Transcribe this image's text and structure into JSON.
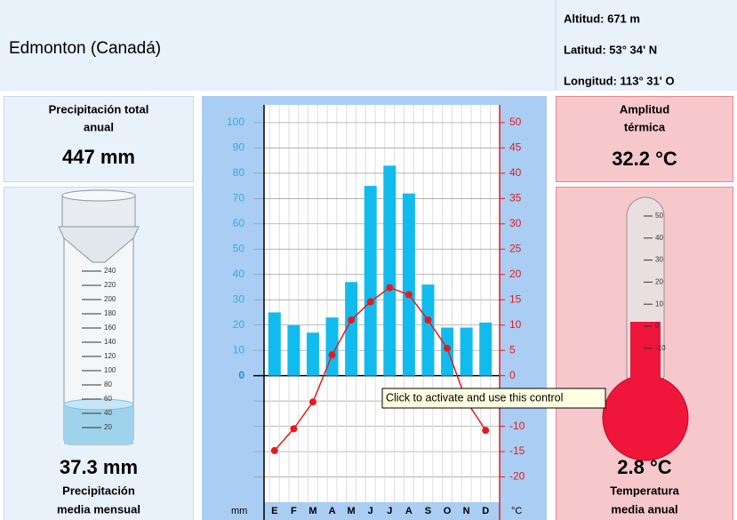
{
  "header": {
    "title": "Edmonton (Canadá)",
    "altitude": "Altitud: 671 m",
    "latitude": "Latitud: 53° 34' N",
    "longitude": "Longitud: 113° 31' O"
  },
  "precip_total": {
    "label": [
      "Precipitación total",
      "anual"
    ],
    "value": "447 mm"
  },
  "precip_mean": {
    "value": "37.3 mm",
    "label": [
      "Precipitación",
      "media mensual"
    ]
  },
  "amplitude": {
    "label": [
      "Amplitud",
      "térmica"
    ],
    "value": "32.2 °C"
  },
  "temp_mean": {
    "value": "2.8 °C",
    "label": [
      "Temperatura",
      "media anual"
    ]
  },
  "cylinder_ticks": [
    240,
    220,
    200,
    180,
    160,
    140,
    120,
    100,
    80,
    60,
    40,
    20
  ],
  "thermometer_ticks": [
    50,
    40,
    30,
    20,
    10,
    0,
    -10
  ],
  "tooltip": "Click to activate and use this control",
  "chart_data": {
    "type": "climograph",
    "categories": [
      "E",
      "F",
      "M",
      "A",
      "M",
      "J",
      "J",
      "A",
      "S",
      "O",
      "N",
      "D"
    ],
    "series": [
      {
        "name": "Precipitación",
        "color": "#11bbee",
        "values": [
          25,
          20,
          17,
          23,
          37,
          75,
          83,
          72,
          36,
          19,
          19,
          21
        ]
      },
      {
        "name": "Temperatura",
        "color": "#e8191e",
        "axis": "y2",
        "values": [
          -14.8,
          -10.5,
          -5.2,
          4.1,
          11,
          14.6,
          17.4,
          16,
          11,
          5.4,
          -5,
          -10.8
        ]
      }
    ],
    "ylim": [
      -50,
      107
    ],
    "yticks": [
      0,
      10,
      20,
      30,
      40,
      50,
      60,
      70,
      80,
      90,
      100
    ],
    "y2lim": [
      -25,
      53.5
    ],
    "y2ticks": [
      -20,
      -15,
      -10,
      -5,
      0,
      5,
      10,
      15,
      20,
      25,
      30,
      35,
      40,
      45,
      50
    ],
    "ylabel": "mm",
    "y2label": "°C",
    "grid": true
  }
}
